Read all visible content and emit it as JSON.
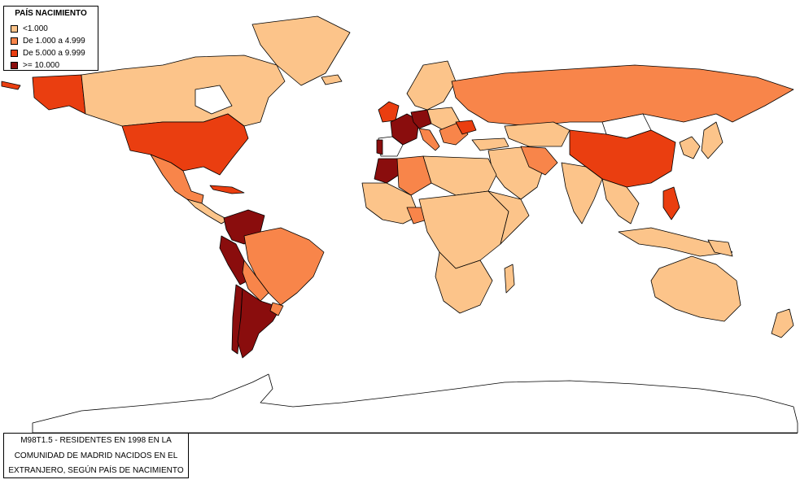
{
  "legend": {
    "title": "PAÍS NACIMIENTO",
    "items": [
      {
        "label": "<1.000",
        "color": "#fcc48a"
      },
      {
        "label": "De 1.000 a 4.999",
        "color": "#f8854a"
      },
      {
        "label": "De 5.000 a 9.999",
        "color": "#ea3e10"
      },
      {
        "label": ">= 10.000",
        "color": "#8a0d0d"
      }
    ]
  },
  "caption": {
    "lines": [
      "M98T1.5 - RESIDENTES EN 1998 EN LA",
      "COMUNIDAD DE MADRID NACIDOS EN EL",
      "EXTRANJERO, SEGÚN PAÍS DE NACIMIENTO"
    ]
  }
}
